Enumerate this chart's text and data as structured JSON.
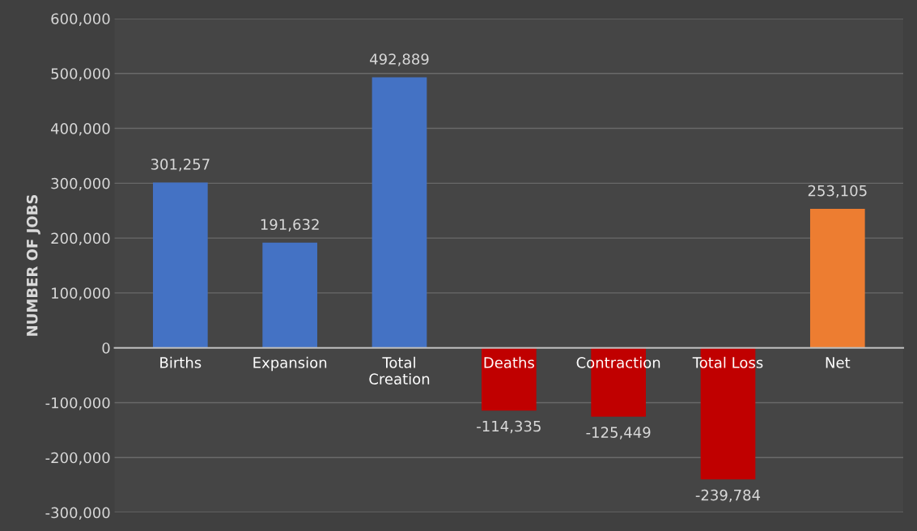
{
  "chart_data": {
    "type": "bar",
    "ylabel": "NUMBER OF JOBS",
    "categories": [
      "Births",
      "Expansion",
      "Total\nCreation",
      "Deaths",
      "Contraction",
      "Total Loss",
      "Net"
    ],
    "values": [
      301257,
      191632,
      492889,
      -114335,
      -125449,
      -239784,
      253105
    ],
    "colors": [
      "#4472c4",
      "#4472c4",
      "#4472c4",
      "#c00000",
      "#c00000",
      "#c00000",
      "#ed7d31"
    ],
    "ylim": [
      -300000,
      600000
    ],
    "yticks": [
      {
        "value": -300000,
        "label": "-300,000"
      },
      {
        "value": -200000,
        "label": "-200,000"
      },
      {
        "value": -100000,
        "label": "-100,000"
      },
      {
        "value": 0,
        "label": "0"
      },
      {
        "value": 100000,
        "label": "100,000"
      },
      {
        "value": 200000,
        "label": "200,000"
      },
      {
        "value": 300000,
        "label": "300,000"
      },
      {
        "value": 400000,
        "label": "400,000"
      },
      {
        "value": 500000,
        "label": "500,000"
      },
      {
        "value": 600000,
        "label": "600,000"
      }
    ],
    "value_labels": [
      "301,257",
      "191,632",
      "492,889",
      "-114,335",
      "-125,449",
      "-239,784",
      "253,105"
    ],
    "grid": "y",
    "legend": false
  }
}
